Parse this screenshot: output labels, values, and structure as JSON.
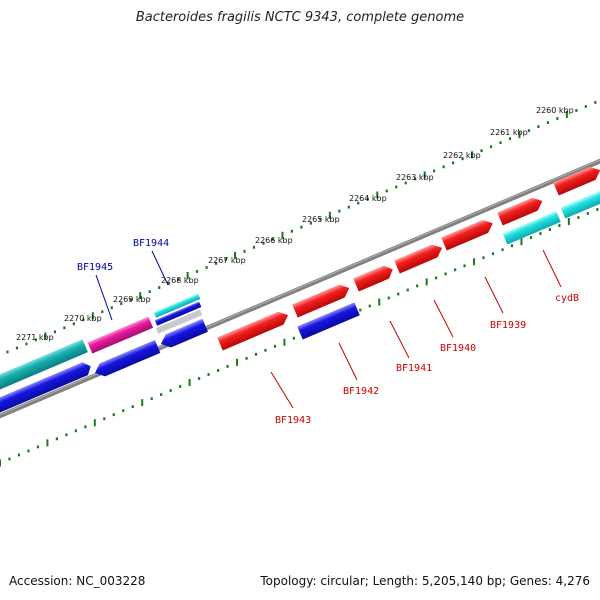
{
  "title": "Bacteroides fragilis NCTC 9343, complete genome",
  "footer": {
    "accession": "Accession: NC_003228",
    "summary": "Topology: circular; Length: 5,205,140 bp; Genes: 4,276"
  },
  "colors": {
    "backbone": "#808080",
    "ticks": "#1a7a1a",
    "forward_gene": "#e61414",
    "reverse_gene": "#1414dc",
    "cyan_gene": "#1ad8d8",
    "teal_gene": "#14a8a8",
    "pink_gene": "#e0189a",
    "forward_label": "#cc0000",
    "reverse_label": "#0000aa"
  },
  "kbp_labels": [
    "2260 kbp",
    "2261 kbp",
    "2262 kbp",
    "2263 kbp",
    "2264 kbp",
    "2265 kbp",
    "2266 kbp",
    "2267 kbp",
    "2268 kbp",
    "2269 kbp",
    "2270 kbp",
    "2271 kbp"
  ],
  "gene_labels": [
    {
      "text": "BF1944",
      "strand": "reverse"
    },
    {
      "text": "BF1945",
      "strand": "reverse"
    },
    {
      "text": "BF1943",
      "strand": "forward"
    },
    {
      "text": "BF1942",
      "strand": "forward"
    },
    {
      "text": "BF1941",
      "strand": "forward"
    },
    {
      "text": "BF1940",
      "strand": "forward"
    },
    {
      "text": "BF1939",
      "strand": "forward"
    },
    {
      "text": "cydB",
      "strand": "forward"
    }
  ]
}
